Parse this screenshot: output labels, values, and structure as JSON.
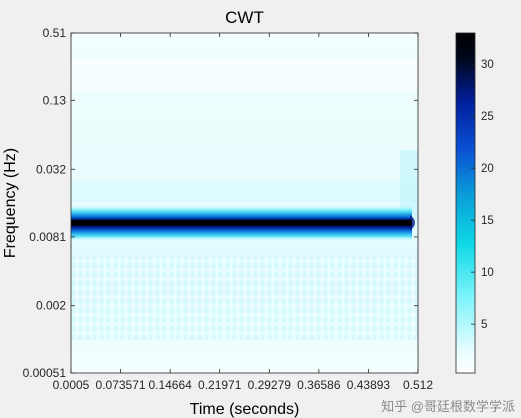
{
  "chart_data": {
    "type": "heatmap",
    "title": "CWT",
    "xlabel": "Time (seconds)",
    "ylabel": "Frequency (Hz)",
    "x_ticks": [
      "0.0005",
      "0.073571",
      "0.14664",
      "0.21971",
      "0.29279",
      "0.36586",
      "0.43893",
      "0.512"
    ],
    "x_tick_values": [
      0.0005,
      0.073571,
      0.14664,
      0.21971,
      0.29279,
      0.36586,
      0.43893,
      0.512
    ],
    "xlim": [
      0.0005,
      0.512
    ],
    "y_ticks": [
      "0.51",
      "0.13",
      "0.032",
      "0.0081",
      "0.002",
      "0.00051"
    ],
    "y_tick_values": [
      0.51,
      0.13,
      0.032,
      0.0081,
      0.002,
      0.00051
    ],
    "ylim": [
      0.00051,
      0.51
    ],
    "y_scale": "log",
    "colorbar": {
      "ticks": [
        5,
        10,
        15,
        20,
        25,
        30
      ],
      "range": [
        0.3,
        33
      ],
      "colors": [
        "#ffffff",
        "#eafdff",
        "#7ff4fb",
        "#0fd8e6",
        "#0a9fd8",
        "#0a4fd4",
        "#001e9a",
        "#000820",
        "#000000"
      ]
    },
    "features": {
      "ridge_frequency": 0.0108,
      "ridge_peak_magnitude": 33,
      "ridge_time_range": [
        0.0005,
        0.512
      ]
    },
    "watermark": "知乎 @哥廷根数学学派"
  }
}
